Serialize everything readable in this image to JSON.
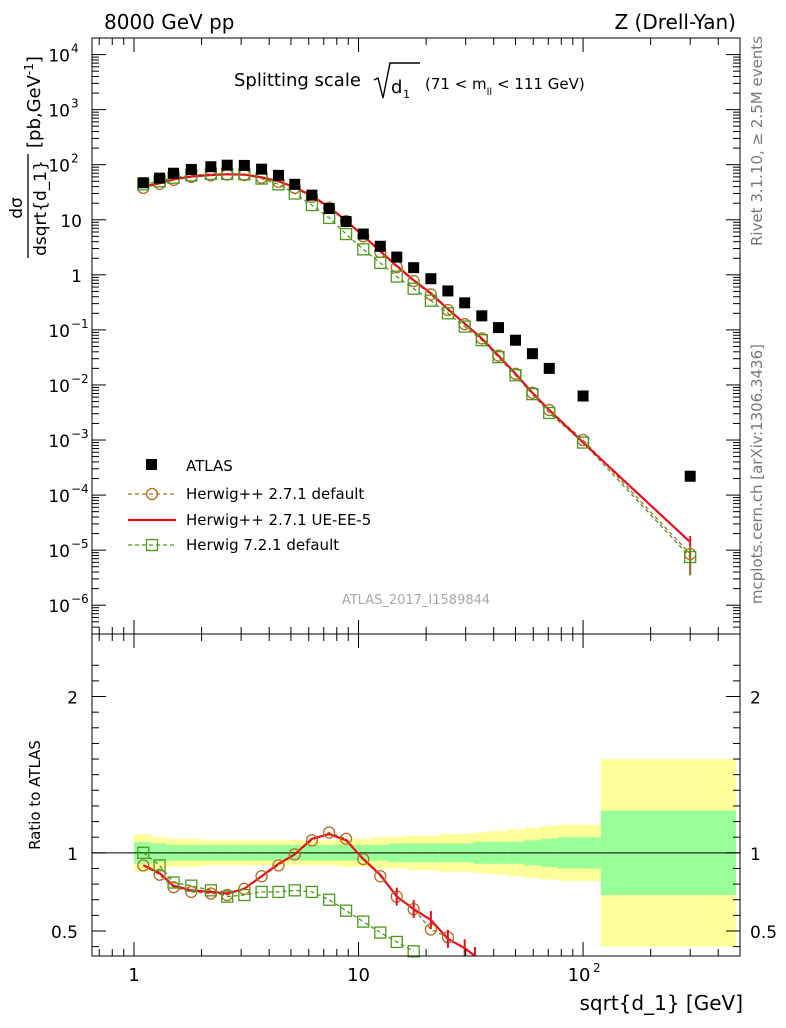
{
  "header": {
    "left": "8000 GeV pp",
    "right": "Z (Drell-Yan)"
  },
  "side_labels": {
    "rivet": "Rivet 3.1.10, ≥ 2.5M events",
    "mcplots": "mcplots.cern.ch [arXiv:1306.3436]"
  },
  "chart_data": [
    {
      "type": "scatter",
      "panel": "main",
      "title_main": "Splitting scale",
      "title_var": "d",
      "title_var_sub": "1",
      "title_cut_pre": "(71 < m",
      "title_cut_sub": "ll",
      "title_cut_post": " < 111 GeV)",
      "ylabel_num": "dσ",
      "ylabel_den": "dsqrt{d_1}",
      "ylabel_unit_pre": "[pb,GeV",
      "ylabel_unit_sup": "-1",
      "ylabel_unit_post": "]",
      "x_scale": "log",
      "y_scale": "log",
      "xlim": [
        0.65,
        500
      ],
      "ylim": [
        3e-07,
        20000.0
      ],
      "x_tick_labels": [
        "1",
        "10",
        "10",
        "2"
      ],
      "y_tick_labels": [
        {
          "base": "10",
          "exp": "4",
          "value": 10000
        },
        {
          "base": "10",
          "exp": "3",
          "value": 1000
        },
        {
          "base": "10",
          "exp": "2",
          "value": 100
        },
        {
          "base": "10",
          "exp": "",
          "value": 10
        },
        {
          "base": "1",
          "exp": "",
          "value": 1
        },
        {
          "base": "10",
          "exp": "−1",
          "value": 0.1
        },
        {
          "base": "10",
          "exp": "−2",
          "value": 0.01
        },
        {
          "base": "10",
          "exp": "−3",
          "value": 0.001
        },
        {
          "base": "10",
          "exp": "−4",
          "value": 0.0001
        },
        {
          "base": "10",
          "exp": "−5",
          "value": 1e-05
        },
        {
          "base": "10",
          "exp": "−6",
          "value": 1e-06
        }
      ],
      "watermark": "ATLAS_2017_I1589844",
      "legend_position": "lower-left",
      "series": [
        {
          "name": "ATLAS",
          "color": "#000000",
          "marker": "filled-square",
          "x": [
            1.1,
            1.3,
            1.5,
            1.8,
            2.2,
            2.6,
            3.1,
            3.7,
            4.4,
            5.2,
            6.2,
            7.4,
            8.8,
            10.5,
            12.5,
            14.8,
            17.6,
            21,
            25,
            29.7,
            35.4,
            42,
            50,
            59.5,
            70.7,
            100,
            300
          ],
          "y": [
            47,
            57,
            70,
            82,
            92,
            98,
            97,
            83,
            64,
            44,
            28,
            16,
            9.3,
            5.5,
            3.3,
            2.1,
            1.35,
            0.85,
            0.51,
            0.31,
            0.18,
            0.11,
            0.065,
            0.037,
            0.02,
            0.0063,
            0.00022
          ]
        },
        {
          "name": "Herwig++ 2.7.1 default",
          "color": "#b36b1e",
          "marker": "open-circle",
          "line": "dashed",
          "x": [
            1.1,
            1.3,
            1.5,
            1.8,
            2.2,
            2.6,
            3.1,
            3.7,
            4.4,
            5.2,
            6.2,
            7.4,
            8.8,
            10.5,
            12.5,
            14.8,
            17.6,
            21,
            25,
            29.7,
            35.4,
            42,
            50,
            59.5,
            70.7,
            100,
            300
          ],
          "y": [
            38,
            45,
            53,
            60,
            64,
            66,
            65,
            58,
            49,
            38,
            26,
            16.5,
            9.5,
            5.0,
            2.6,
            1.38,
            0.77,
            0.44,
            0.23,
            0.127,
            0.07,
            0.034,
            0.016,
            0.0072,
            0.0035,
            0.001,
            8.5e-06
          ]
        },
        {
          "name": "Herwig++ 2.7.1 UE-EE-5",
          "color": "#e8101e",
          "marker": "none",
          "line": "solid",
          "x": [
            1.1,
            1.3,
            1.5,
            1.8,
            2.2,
            2.6,
            3.1,
            3.7,
            4.4,
            5.2,
            6.2,
            7.4,
            8.8,
            10.5,
            12.5,
            14.8,
            17.6,
            21,
            25,
            29.7,
            35.4,
            42,
            50,
            59.5,
            70.7,
            100,
            300
          ],
          "y": [
            40,
            46,
            54,
            61,
            65,
            67,
            66,
            59,
            50,
            39,
            27,
            17,
            9.6,
            5.1,
            2.7,
            1.45,
            0.8,
            0.46,
            0.24,
            0.13,
            0.07,
            0.034,
            0.016,
            0.0072,
            0.0035,
            0.0009,
            1.4e-05
          ]
        },
        {
          "name": "Herwig 7.2.1 default",
          "color": "#4a9a1c",
          "marker": "open-square",
          "line": "dashed",
          "x": [
            1.1,
            1.3,
            1.5,
            1.8,
            2.2,
            2.6,
            3.1,
            3.7,
            4.4,
            5.2,
            6.2,
            7.4,
            8.8,
            10.5,
            12.5,
            14.8,
            17.6,
            21,
            25,
            29.7,
            35.4,
            42,
            50,
            59.5,
            70.7,
            100,
            300
          ],
          "y": [
            44,
            50,
            58,
            64,
            68,
            68,
            67,
            56,
            44,
            30,
            18.5,
            10.8,
            5.5,
            2.9,
            1.65,
            0.93,
            0.56,
            0.34,
            0.2,
            0.115,
            0.065,
            0.032,
            0.015,
            0.0068,
            0.0031,
            0.0009,
            7.5e-06
          ]
        }
      ]
    },
    {
      "type": "line",
      "panel": "ratio",
      "ylabel": "Ratio to ATLAS",
      "x_scale": "log",
      "xlim": [
        0.65,
        500
      ],
      "ylim": [
        0.34,
        2.4
      ],
      "y_tick_labels": [
        "2",
        "1",
        "0.5"
      ],
      "y_ticks": [
        2,
        1,
        0.5
      ],
      "reference_line": 1,
      "bands": {
        "x_edges": [
          1.0,
          1.2,
          1.4,
          1.65,
          2.0,
          2.4,
          2.85,
          3.4,
          4.05,
          4.8,
          5.7,
          6.8,
          8.1,
          9.6,
          11.5,
          13.6,
          16.2,
          19.3,
          23,
          27.3,
          32.5,
          38.6,
          46,
          54.6,
          65,
          77,
          120,
          480
        ],
        "green_hw": [
          0.07,
          0.06,
          0.05,
          0.05,
          0.05,
          0.05,
          0.05,
          0.05,
          0.05,
          0.05,
          0.05,
          0.05,
          0.05,
          0.05,
          0.05,
          0.06,
          0.06,
          0.06,
          0.06,
          0.06,
          0.07,
          0.07,
          0.07,
          0.08,
          0.09,
          0.1,
          0.27
        ],
        "yellow_hw": [
          0.12,
          0.1,
          0.09,
          0.09,
          0.08,
          0.08,
          0.08,
          0.08,
          0.08,
          0.08,
          0.08,
          0.08,
          0.09,
          0.09,
          0.1,
          0.1,
          0.11,
          0.11,
          0.12,
          0.12,
          0.13,
          0.14,
          0.15,
          0.16,
          0.17,
          0.18,
          0.6
        ],
        "green_color": "#99ff99",
        "yellow_color": "#ffff99"
      },
      "series": [
        {
          "name": "Herwig++ 2.7.1 default",
          "color": "#b36b1e",
          "marker": "open-circle",
          "x": [
            1.1,
            1.3,
            1.5,
            1.8,
            2.2,
            2.6,
            3.1,
            3.7,
            4.4,
            5.2,
            6.2,
            7.4,
            8.8,
            10.5,
            12.5,
            14.8,
            17.6,
            21,
            25
          ],
          "y": [
            0.92,
            0.86,
            0.78,
            0.75,
            0.74,
            0.73,
            0.77,
            0.85,
            0.92,
            0.99,
            1.08,
            1.13,
            1.09,
            0.96,
            0.85,
            0.72,
            0.64,
            0.51,
            0.46
          ]
        },
        {
          "name": "Herwig++ 2.7.1 UE-EE-5",
          "color": "#e8101e",
          "marker": "none",
          "x": [
            1.1,
            1.3,
            1.5,
            1.8,
            2.2,
            2.6,
            3.1,
            3.7,
            4.4,
            5.2,
            6.2,
            7.4,
            8.8,
            10.5,
            12.5,
            14.8,
            17.6,
            21,
            25,
            29.7,
            33
          ],
          "y": [
            0.92,
            0.87,
            0.79,
            0.76,
            0.75,
            0.74,
            0.77,
            0.85,
            0.93,
            0.99,
            1.09,
            1.12,
            1.08,
            0.96,
            0.86,
            0.72,
            0.64,
            0.57,
            0.45,
            0.39,
            0.34
          ]
        },
        {
          "name": "Herwig 7.2.1 default",
          "color": "#4a9a1c",
          "marker": "open-square",
          "x": [
            1.1,
            1.3,
            1.5,
            1.8,
            2.2,
            2.6,
            3.1,
            3.7,
            4.4,
            5.2,
            6.2,
            7.4,
            8.8,
            10.5,
            12.5,
            14.8,
            17.6
          ],
          "y": [
            1.0,
            0.92,
            0.81,
            0.79,
            0.76,
            0.72,
            0.73,
            0.75,
            0.75,
            0.76,
            0.75,
            0.7,
            0.63,
            0.56,
            0.49,
            0.43,
            0.37
          ]
        }
      ],
      "xlabel": "sqrt{d_1} [GeV]"
    }
  ]
}
